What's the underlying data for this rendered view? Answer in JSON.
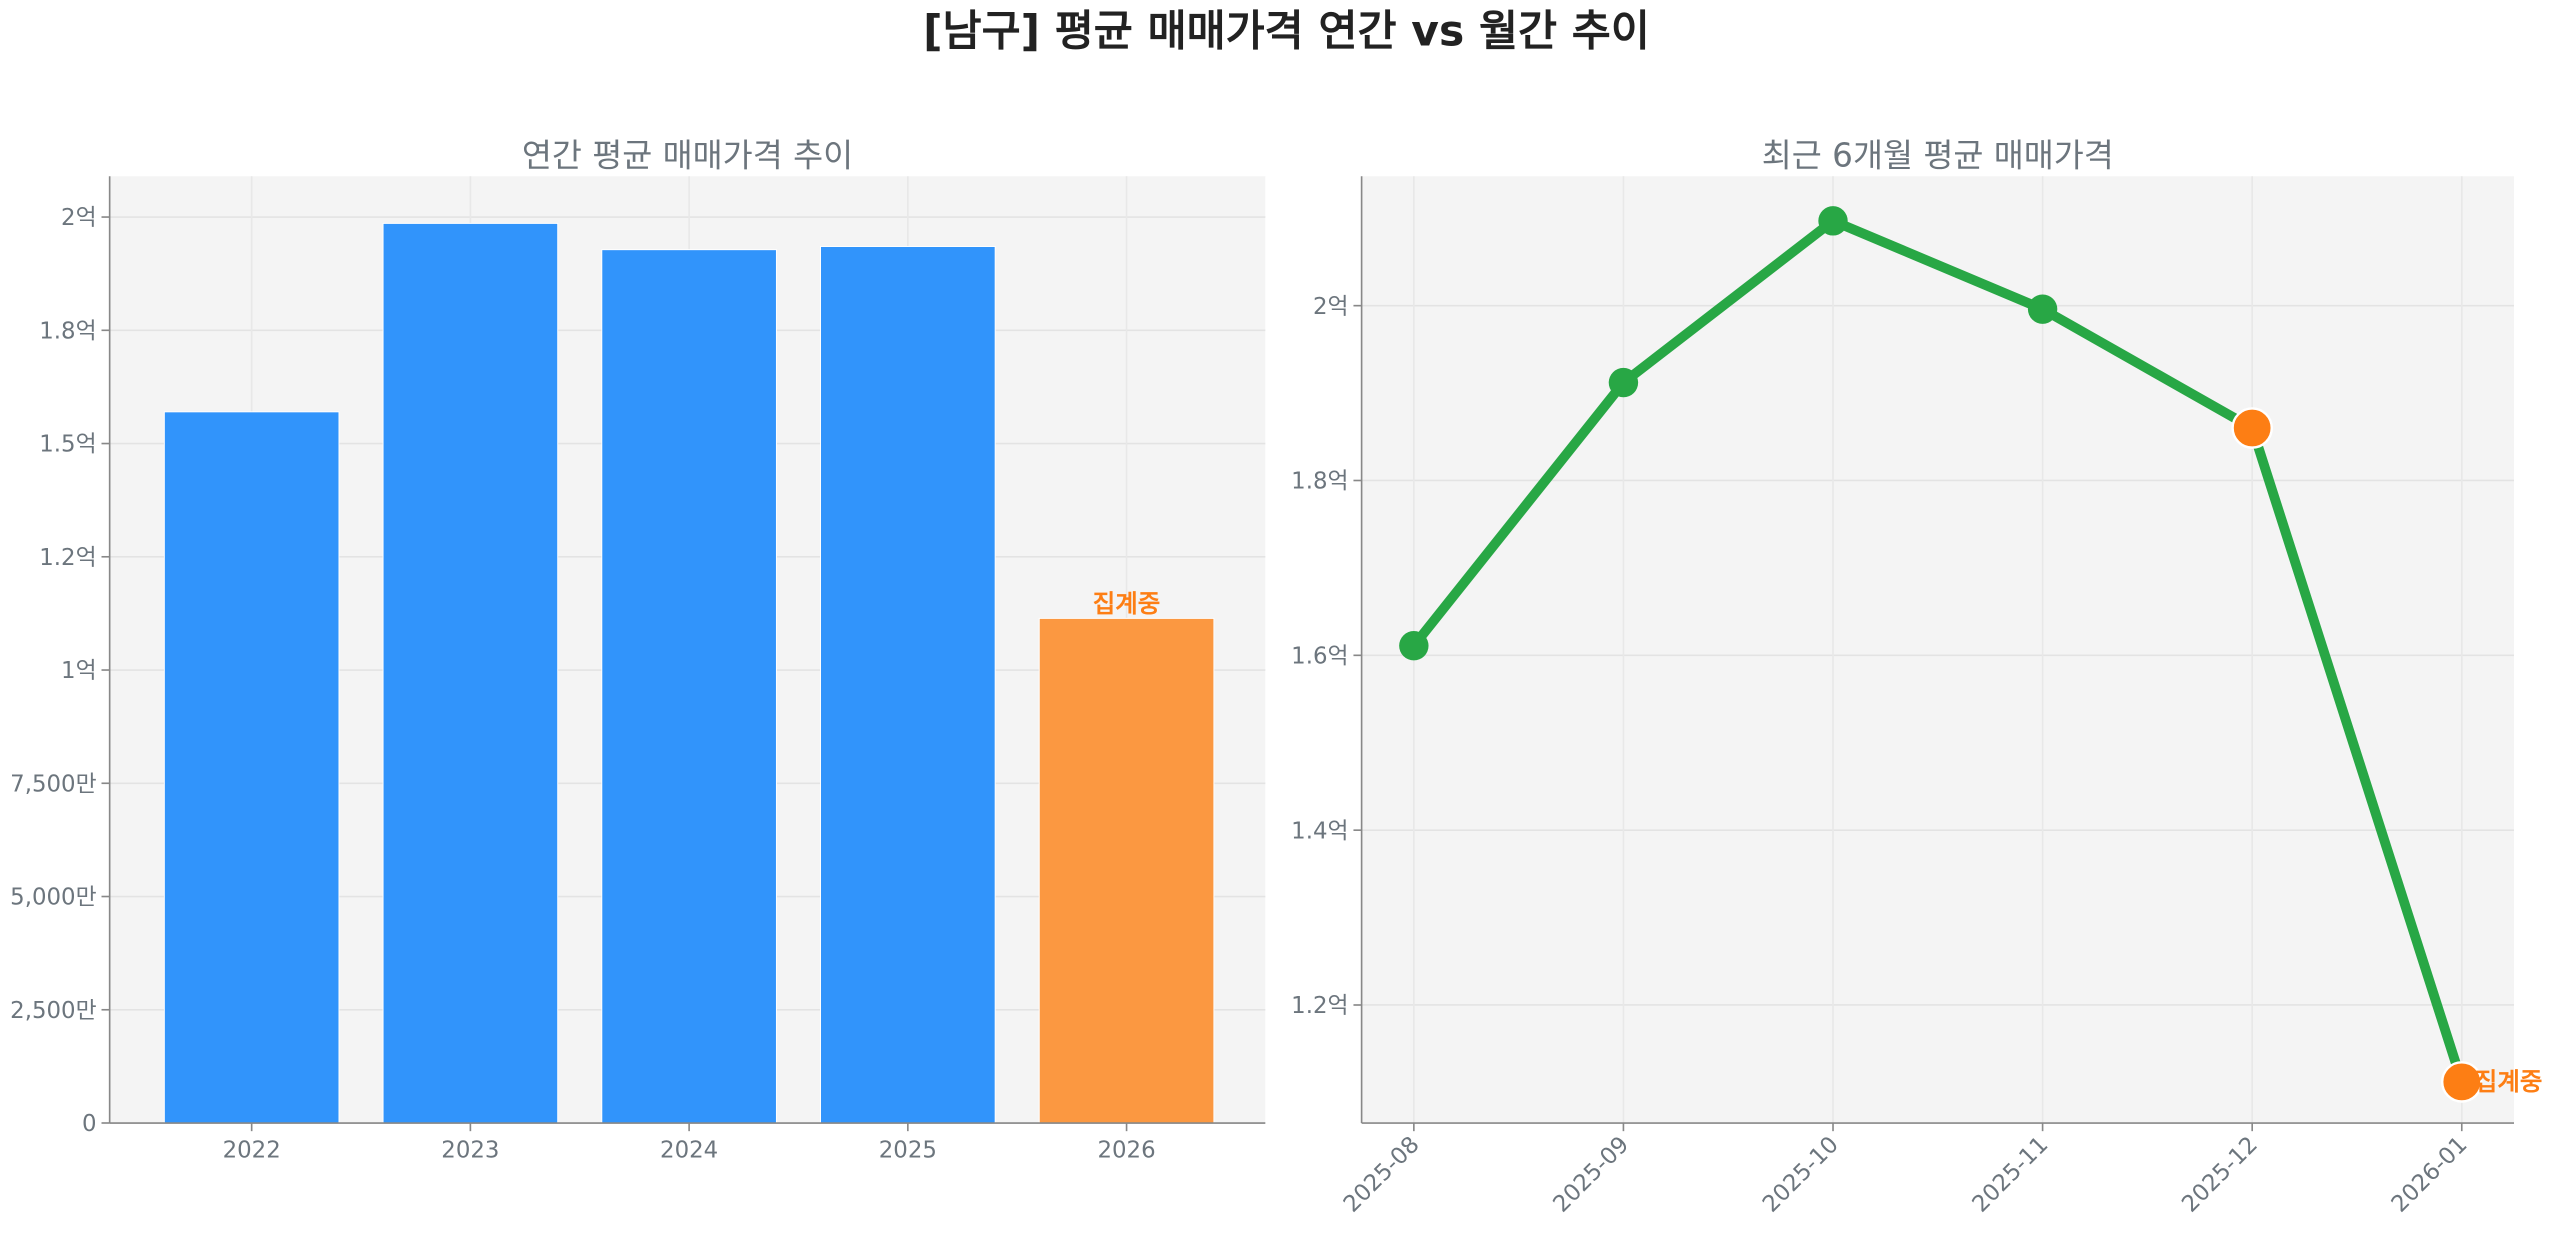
{
  "title": "[남구] 평균 매매가격 연간 vs 월간 추이",
  "colors": {
    "bar": "#3194fb",
    "bar_partial": "#fb9841",
    "line": "#28a745",
    "marker_partial": "#fd7e14",
    "panel_bg": "#f4f4f4",
    "partial_text": "#fd7e14"
  },
  "chart_data": [
    {
      "type": "bar",
      "title": "연간 평균 매매가격 추이",
      "categories": [
        "2022",
        "2023",
        "2024",
        "2025",
        "2026"
      ],
      "values": [
        157000000,
        198600000,
        192800000,
        193500000,
        111400000
      ],
      "partial_index": 4,
      "partial_label": "집계중",
      "ylim": [
        0,
        209000000
      ],
      "yticks": [
        0,
        25000000,
        50000000,
        75000000,
        100000000,
        125000000,
        150000000,
        175000000,
        200000000
      ],
      "ytick_labels": [
        "0",
        "2,500만",
        "5,000만",
        "7,500만",
        "1억",
        "1.2억",
        "1.5억",
        "1.8억",
        "2억"
      ],
      "grid": true
    },
    {
      "type": "line",
      "title": "최근 6개월 평균 매매가격",
      "x": [
        "2025-08",
        "2025-09",
        "2025-10",
        "2025-11",
        "2025-12",
        "2026-01"
      ],
      "values": [
        161100000,
        191200000,
        209700000,
        199600000,
        186000000,
        111200000
      ],
      "highlight_indices": [
        4,
        5
      ],
      "partial_label": "집계중",
      "ylim": [
        106500000,
        214800000
      ],
      "yticks": [
        120000000,
        140000000,
        160000000,
        180000000,
        200000000
      ],
      "ytick_labels": [
        "1.2억",
        "1.4억",
        "1.6억",
        "1.8억",
        "2억"
      ],
      "grid": true
    }
  ]
}
